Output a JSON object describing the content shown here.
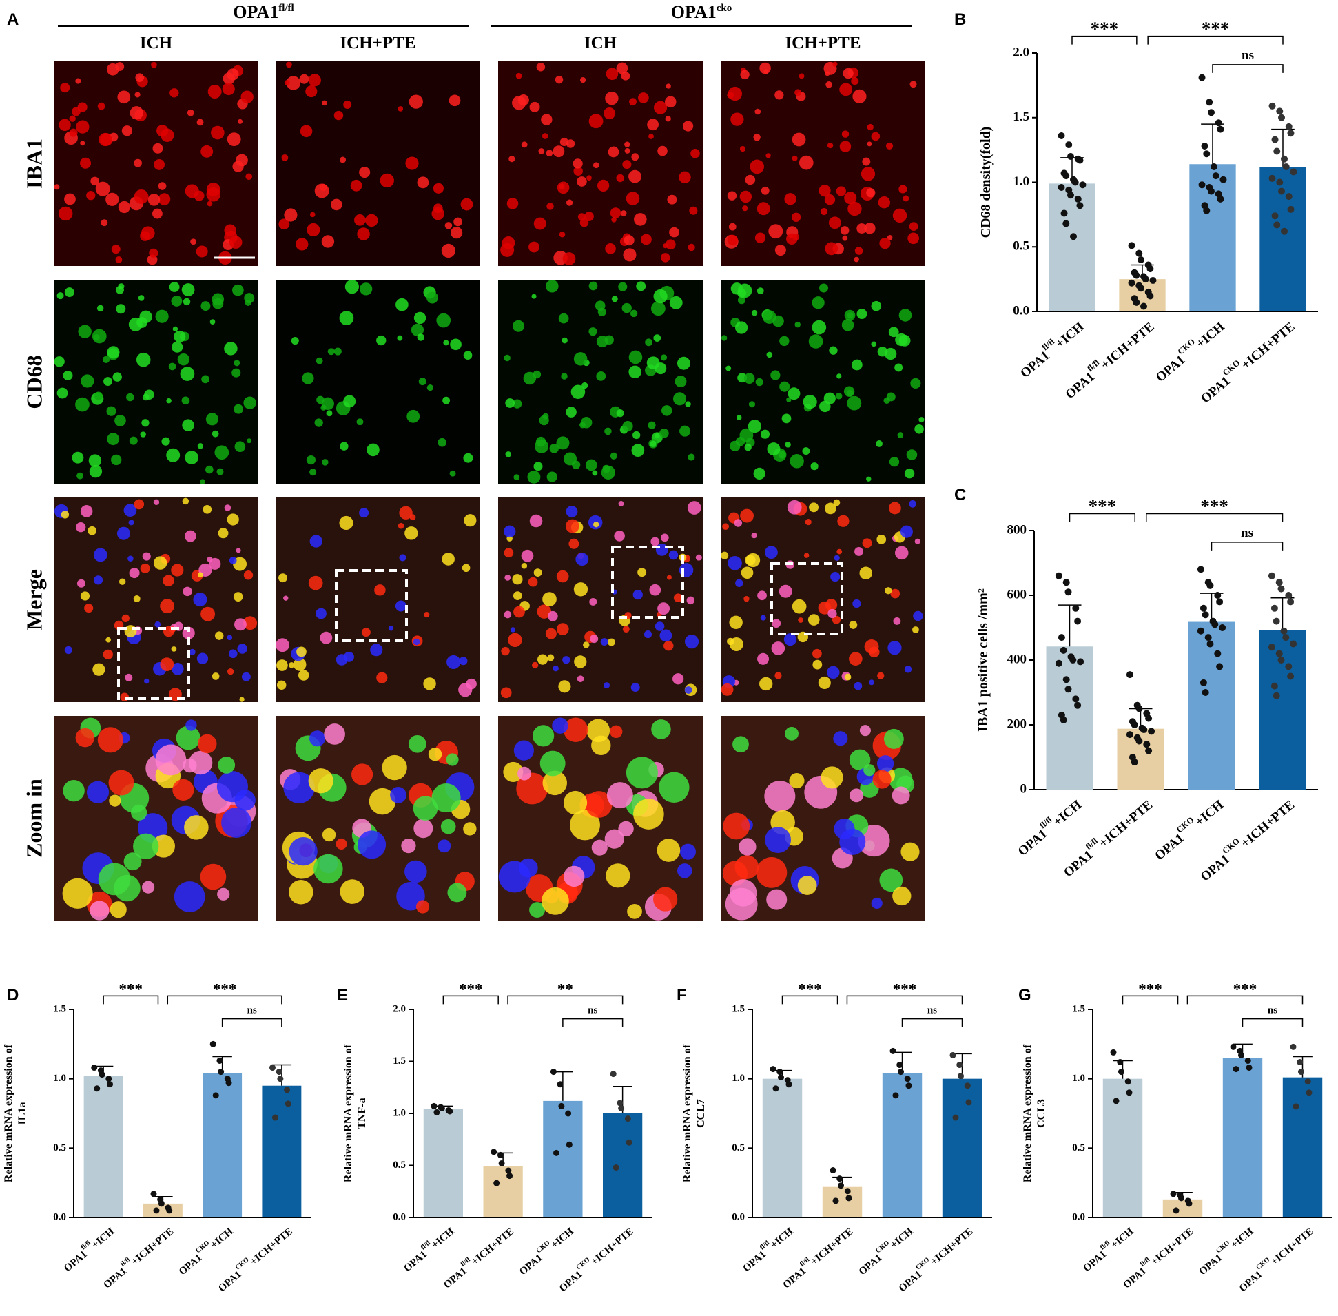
{
  "panel_a": {
    "label": "A",
    "groups": [
      {
        "title": "OPA1",
        "sup": "fl/fl"
      },
      {
        "title": "OPA1",
        "sup": "cko"
      }
    ],
    "columns": [
      "ICH",
      "ICH+PTE",
      "ICH",
      "ICH+PTE"
    ],
    "rows": [
      "IBA1",
      "CD68",
      "Merge",
      "Zoom in"
    ]
  },
  "chart_data": [
    {
      "type": "bar",
      "panel": "B",
      "ylabel": [
        "CD68 density(fold)"
      ],
      "categories": [
        {
          "text": "OPA1",
          "sup": "fl/fl",
          "suffix": "+ICH"
        },
        {
          "text": "OPA1",
          "sup": "fl/fl",
          "suffix": "+ICH+PTE"
        },
        {
          "text": "OPA1",
          "sup": "CKO",
          "suffix": "+ICH"
        },
        {
          "text": "OPA1",
          "sup": "CKO",
          "suffix": "+ICH+PTE"
        }
      ],
      "values": [
        0.99,
        0.25,
        1.14,
        1.12
      ],
      "errors": [
        0.2,
        0.11,
        0.31,
        0.29
      ],
      "colors": [
        "#b9ccd6",
        "#e8cfa3",
        "#6aa2d3",
        "#0c5f9e"
      ],
      "points": [
        [
          1.36,
          1.29,
          1.2,
          1.18,
          1.17,
          1.07,
          1.05,
          1.02,
          1.0,
          0.98,
          0.96,
          0.94,
          0.9,
          0.87,
          0.82,
          0.76,
          0.68,
          0.58
        ],
        [
          0.51,
          0.45,
          0.4,
          0.36,
          0.33,
          0.3,
          0.28,
          0.27,
          0.25,
          0.24,
          0.22,
          0.2,
          0.18,
          0.15,
          0.12,
          0.1,
          0.07,
          0.04
        ],
        [
          1.81,
          1.62,
          1.54,
          1.46,
          1.41,
          1.28,
          1.22,
          1.12,
          1.05,
          1.02,
          0.98,
          0.96,
          0.93,
          0.91,
          0.87,
          0.82,
          0.78
        ],
        [
          1.59,
          1.55,
          1.5,
          1.43,
          1.38,
          1.33,
          1.24,
          1.18,
          1.12,
          1.08,
          1.03,
          1.0,
          0.93,
          0.89,
          0.79,
          0.74,
          0.67,
          0.62
        ]
      ],
      "ylim": [
        0,
        2
      ],
      "yticks": [
        {
          "value": 0,
          "label": "0.0"
        },
        0.5,
        {
          "value": 1,
          "label": "1.0"
        },
        1.5,
        {
          "value": 2,
          "label": "2.0"
        }
      ],
      "annotations": [
        {
          "text": "***",
          "from": 0,
          "to": 1
        },
        {
          "text": "***",
          "from": 1,
          "to": 3
        },
        {
          "text": "ns",
          "from": 2,
          "to": 3
        }
      ]
    },
    {
      "type": "bar",
      "panel": "C",
      "ylabel": [
        "IBA1 positive cells /mm²"
      ],
      "categories": [
        {
          "text": "OPA1",
          "sup": "fl/fl",
          "suffix": "+ICH"
        },
        {
          "text": "OPA1",
          "sup": "fl/fl",
          "suffix": "+ICH+PTE"
        },
        {
          "text": "OPA1",
          "sup": "CKO",
          "suffix": "+ICH"
        },
        {
          "text": "OPA1",
          "sup": "CKO",
          "suffix": "+ICH+PTE"
        }
      ],
      "values": [
        442,
        188,
        518,
        492
      ],
      "errors": [
        128,
        62,
        88,
        100
      ],
      "colors": [
        "#b9ccd6",
        "#e8cfa3",
        "#6aa2d3",
        "#0c5f9e"
      ],
      "points": [
        [
          660,
          640,
          610,
          560,
          520,
          470,
          430,
          410,
          400,
          395,
          390,
          340,
          310,
          280,
          260,
          230,
          215
        ],
        [
          355,
          260,
          250,
          235,
          220,
          210,
          200,
          190,
          185,
          180,
          170,
          160,
          150,
          140,
          120,
          100,
          85
        ],
        [
          680,
          640,
          630,
          600,
          580,
          560,
          540,
          520,
          510,
          500,
          490,
          470,
          450,
          420,
          380,
          330,
          300
        ],
        [
          660,
          640,
          620,
          600,
          580,
          560,
          520,
          490,
          470,
          450,
          440,
          420,
          400,
          380,
          350,
          320,
          290
        ]
      ],
      "ylim": [
        0,
        800
      ],
      "yticks": [
        0,
        200,
        400,
        600,
        800
      ],
      "annotations": [
        {
          "text": "***",
          "from": 0,
          "to": 1
        },
        {
          "text": "***",
          "from": 1,
          "to": 3
        },
        {
          "text": "ns",
          "from": 2,
          "to": 3
        }
      ]
    },
    {
      "type": "bar",
      "panel": "D",
      "ylabel": [
        "Relative mRNA expression of",
        "IL1a"
      ],
      "categories": [
        {
          "text": "OPA1",
          "sup": "fl/fl",
          "suffix": "+ICH"
        },
        {
          "text": "OPA1",
          "sup": "fl/fl",
          "suffix": "+ICH+PTE"
        },
        {
          "text": "OPA1",
          "sup": "CKO",
          "suffix": "+ICH"
        },
        {
          "text": "OPA1",
          "sup": "CKO",
          "suffix": "+ICH+PTE"
        }
      ],
      "values": [
        1.02,
        0.1,
        1.04,
        0.95
      ],
      "errors": [
        0.07,
        0.05,
        0.12,
        0.15
      ],
      "colors": [
        "#b9ccd6",
        "#e8cfa3",
        "#6aa2d3",
        "#0c5f9e"
      ],
      "points": [
        [
          1.08,
          1.06,
          1.03,
          1.0,
          0.96,
          0.93
        ],
        [
          0.17,
          0.13,
          0.1,
          0.07,
          0.05,
          0.05
        ],
        [
          1.25,
          1.13,
          1.05,
          1.0,
          0.97,
          0.88
        ],
        [
          1.08,
          1.05,
          1.0,
          0.92,
          0.82,
          0.72
        ]
      ],
      "ylim": [
        0,
        1.5
      ],
      "yticks": [
        {
          "value": 0,
          "label": "0.0"
        },
        0.5,
        {
          "value": 1,
          "label": "1.0"
        },
        1.5
      ],
      "annotations": [
        {
          "text": "***",
          "from": 0,
          "to": 1
        },
        {
          "text": "***",
          "from": 1,
          "to": 3
        },
        {
          "text": "ns",
          "from": 2,
          "to": 3
        }
      ]
    },
    {
      "type": "bar",
      "panel": "E",
      "ylabel": [
        "Relative mRNA expression of",
        "TNF-a"
      ],
      "categories": [
        {
          "text": "OPA1",
          "sup": "fl/fl",
          "suffix": "+ICH"
        },
        {
          "text": "OPA1",
          "sup": "fl/fl",
          "suffix": "+ICH+PTE"
        },
        {
          "text": "OPA1",
          "sup": "CKO",
          "suffix": "+ICH"
        },
        {
          "text": "OPA1",
          "sup": "CKO",
          "suffix": "+ICH+PTE"
        }
      ],
      "values": [
        1.04,
        0.49,
        1.12,
        1.0
      ],
      "errors": [
        0.03,
        0.13,
        0.28,
        0.26
      ],
      "colors": [
        "#b9ccd6",
        "#e8cfa3",
        "#6aa2d3",
        "#0c5f9e"
      ],
      "points": [
        [
          1.07,
          1.06,
          1.05,
          1.03,
          1.02,
          1.01
        ],
        [
          0.63,
          0.6,
          0.52,
          0.45,
          0.4,
          0.33
        ],
        [
          1.4,
          1.28,
          1.07,
          1.0,
          0.7,
          0.62
        ],
        [
          1.38,
          1.1,
          1.05,
          0.95,
          0.72,
          0.48
        ]
      ],
      "ylim": [
        0,
        2
      ],
      "yticks": [
        {
          "value": 0,
          "label": "0.0"
        },
        0.5,
        {
          "value": 1,
          "label": "1.0"
        },
        1.5,
        {
          "value": 2,
          "label": "2.0"
        }
      ],
      "annotations": [
        {
          "text": "***",
          "from": 0,
          "to": 1
        },
        {
          "text": "**",
          "from": 1,
          "to": 3
        },
        {
          "text": "ns",
          "from": 2,
          "to": 3
        }
      ]
    },
    {
      "type": "bar",
      "panel": "F",
      "ylabel": [
        "Relative mRNA expression of",
        "CCL7"
      ],
      "categories": [
        {
          "text": "OPA1",
          "sup": "fl/fl",
          "suffix": "+ICH"
        },
        {
          "text": "OPA1",
          "sup": "fl/fl",
          "suffix": "+ICH+PTE"
        },
        {
          "text": "OPA1",
          "sup": "CKO",
          "suffix": "+ICH"
        },
        {
          "text": "OPA1",
          "sup": "CKO",
          "suffix": "+ICH+PTE"
        }
      ],
      "values": [
        1.0,
        0.22,
        1.04,
        1.0
      ],
      "errors": [
        0.06,
        0.07,
        0.15,
        0.18
      ],
      "colors": [
        "#b9ccd6",
        "#e8cfa3",
        "#6aa2d3",
        "#0c5f9e"
      ],
      "points": [
        [
          1.07,
          1.05,
          1.01,
          0.99,
          0.96,
          0.93
        ],
        [
          0.34,
          0.28,
          0.23,
          0.19,
          0.14,
          0.12
        ],
        [
          1.2,
          1.1,
          1.05,
          1.0,
          0.95,
          0.88
        ],
        [
          1.17,
          1.1,
          1.02,
          0.95,
          0.83,
          0.72
        ]
      ],
      "ylim": [
        0,
        1.5
      ],
      "yticks": [
        {
          "value": 0,
          "label": "0.0"
        },
        0.5,
        {
          "value": 1,
          "label": "1.0"
        },
        1.5
      ],
      "annotations": [
        {
          "text": "***",
          "from": 0,
          "to": 1
        },
        {
          "text": "***",
          "from": 1,
          "to": 3
        },
        {
          "text": "ns",
          "from": 2,
          "to": 3
        }
      ]
    },
    {
      "type": "bar",
      "panel": "G",
      "ylabel": [
        "Relative mRNA expression of",
        "CCL3"
      ],
      "categories": [
        {
          "text": "OPA1",
          "sup": "fl/fl",
          "suffix": "+ICH"
        },
        {
          "text": "OPA1",
          "sup": "fl/fl",
          "suffix": "+ICH+PTE"
        },
        {
          "text": "OPA1",
          "sup": "CKO",
          "suffix": "+ICH"
        },
        {
          "text": "OPA1",
          "sup": "CKO",
          "suffix": "+ICH+PTE"
        }
      ],
      "values": [
        1.0,
        0.13,
        1.15,
        1.01
      ],
      "errors": [
        0.13,
        0.05,
        0.1,
        0.15
      ],
      "colors": [
        "#b9ccd6",
        "#e8cfa3",
        "#6aa2d3",
        "#0c5f9e"
      ],
      "points": [
        [
          1.19,
          1.12,
          1.05,
          0.98,
          0.9,
          0.84
        ],
        [
          0.17,
          0.16,
          0.14,
          0.12,
          0.1,
          0.05
        ],
        [
          1.23,
          1.2,
          1.17,
          1.13,
          1.08,
          1.07
        ],
        [
          1.23,
          1.12,
          1.05,
          0.98,
          0.9,
          0.8
        ]
      ],
      "ylim": [
        0,
        1.5
      ],
      "yticks": [
        {
          "value": 0,
          "label": "0.0"
        },
        0.5,
        {
          "value": 1,
          "label": "1.0"
        },
        1.5
      ],
      "annotations": [
        {
          "text": "***",
          "from": 0,
          "to": 1
        },
        {
          "text": "***",
          "from": 1,
          "to": 3
        },
        {
          "text": "ns",
          "from": 2,
          "to": 3
        }
      ]
    }
  ]
}
